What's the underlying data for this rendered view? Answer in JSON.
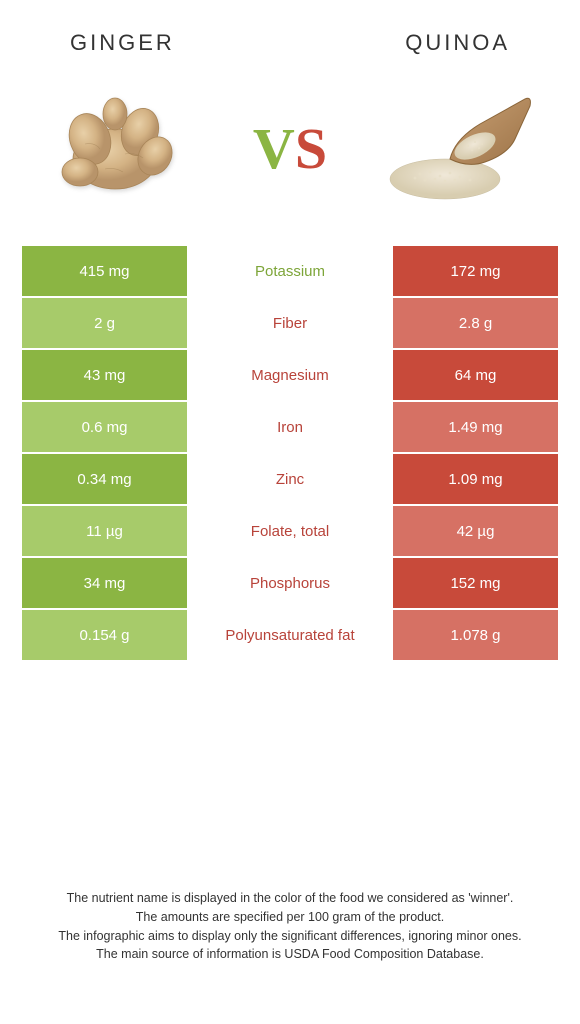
{
  "colors": {
    "green": "#8bb543",
    "green_light": "#a7cb6a",
    "red": "#c84a3a",
    "red_light": "#d67164",
    "winner_green": "#7da539",
    "winner_red": "#b8433a"
  },
  "header": {
    "left": "GINGER",
    "right": "QUINOA"
  },
  "vs": {
    "v": "V",
    "s": "S"
  },
  "rows": [
    {
      "left": "415 mg",
      "mid": "Potassium",
      "right": "172 mg",
      "winner": "left"
    },
    {
      "left": "2 g",
      "mid": "Fiber",
      "right": "2.8 g",
      "winner": "right"
    },
    {
      "left": "43 mg",
      "mid": "Magnesium",
      "right": "64 mg",
      "winner": "right"
    },
    {
      "left": "0.6 mg",
      "mid": "Iron",
      "right": "1.49 mg",
      "winner": "right"
    },
    {
      "left": "0.34 mg",
      "mid": "Zinc",
      "right": "1.09 mg",
      "winner": "right"
    },
    {
      "left": "11 µg",
      "mid": "Folate, total",
      "right": "42 µg",
      "winner": "right"
    },
    {
      "left": "34 mg",
      "mid": "Phosphorus",
      "right": "152 mg",
      "winner": "right"
    },
    {
      "left": "0.154 g",
      "mid": "Polyunsaturated fat",
      "right": "1.078 g",
      "winner": "right"
    }
  ],
  "footer": {
    "line1": "The nutrient name is displayed in the color of the food we considered as 'winner'.",
    "line2": "The amounts are specified per 100 gram of the product.",
    "line3": "The infographic aims to display only the significant differences, ignoring minor ones.",
    "line4": "The main source of information is USDA Food Composition Database."
  }
}
